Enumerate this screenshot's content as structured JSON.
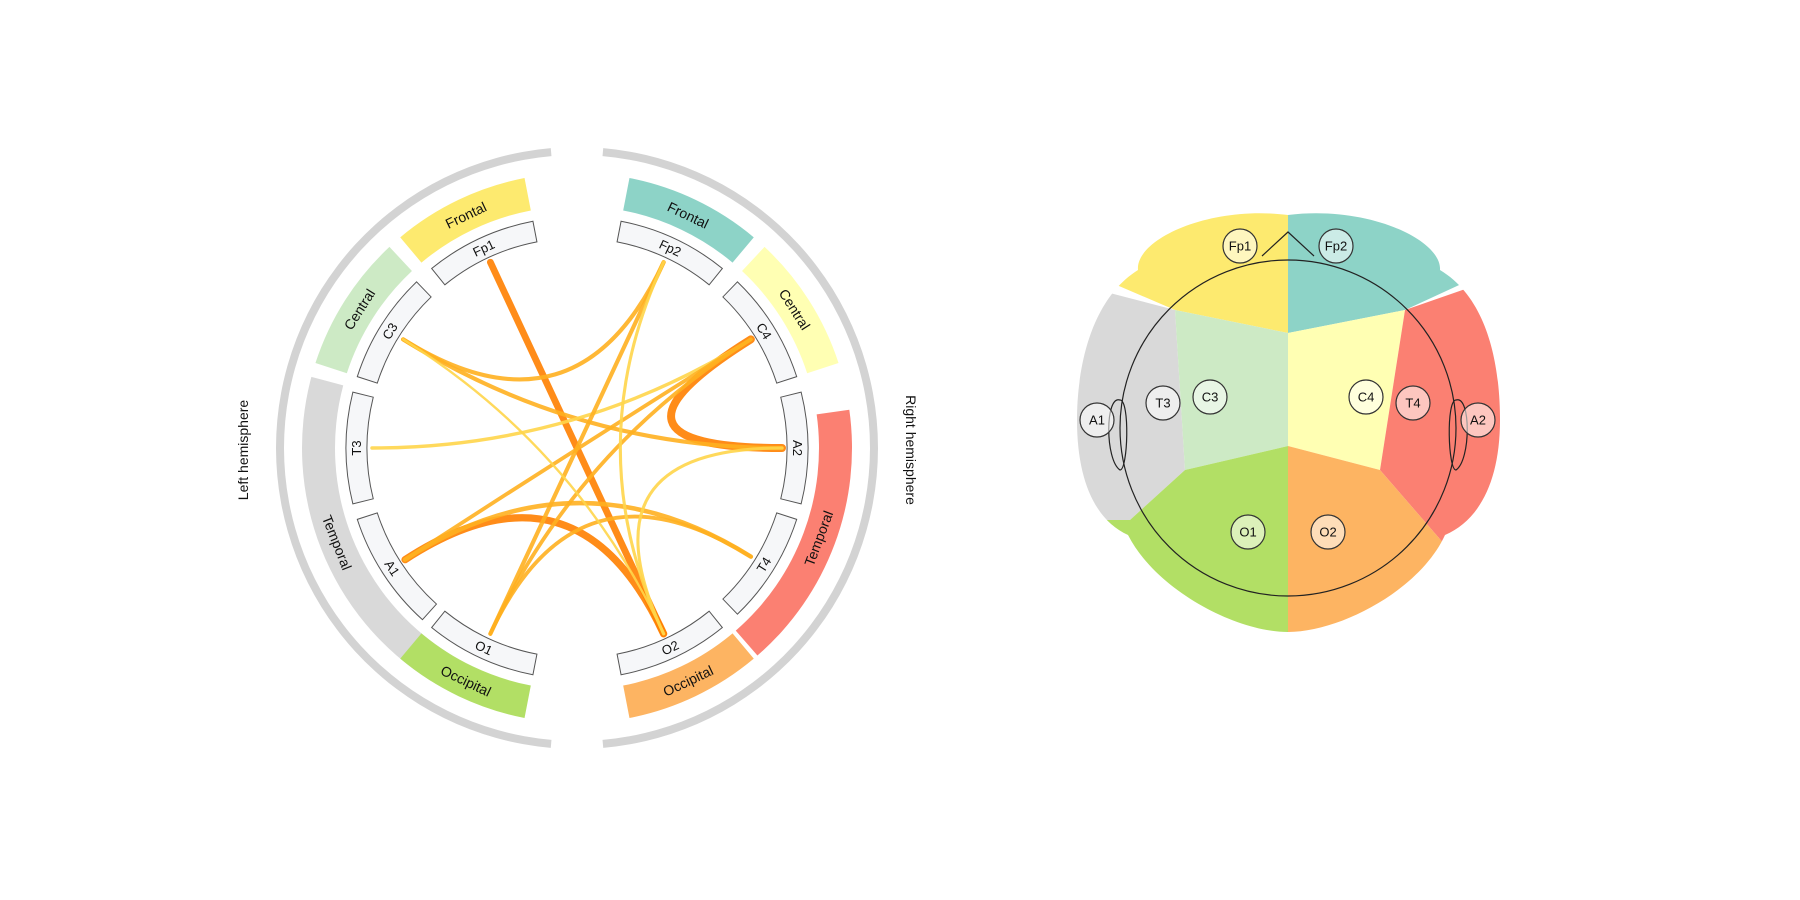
{
  "hemispheres": {
    "left": "Left hemisphere",
    "right": "Right hemisphere",
    "color": "#d3d3d3"
  },
  "regions": [
    {
      "id": "left-frontal",
      "label": "Frontal",
      "color": "#fdea6f"
    },
    {
      "id": "left-central",
      "label": "Central",
      "color": "#cdeac5"
    },
    {
      "id": "left-temporal",
      "label": "Temporal",
      "color": "#d9d9d9"
    },
    {
      "id": "left-occipital",
      "label": "Occipital",
      "color": "#b2df65"
    },
    {
      "id": "right-frontal",
      "label": "Frontal",
      "color": "#8dd3c7"
    },
    {
      "id": "right-central",
      "label": "Central",
      "color": "#ffffb3"
    },
    {
      "id": "right-temporal",
      "label": "Temporal",
      "color": "#fb8072"
    },
    {
      "id": "right-occipital",
      "label": "Occipital",
      "color": "#fdb462"
    }
  ],
  "electrodes": [
    "Fp1",
    "C3",
    "T3",
    "A1",
    "O1",
    "Fp2",
    "C4",
    "A2",
    "T4",
    "O2"
  ],
  "electrode_fill": "#f6f7f9",
  "connections": [
    {
      "from": "Fp1",
      "to": "O2",
      "strength": 0.82
    },
    {
      "from": "A1",
      "to": "O2",
      "strength": 0.9
    },
    {
      "from": "C4",
      "to": "A2",
      "strength": 1.0
    },
    {
      "from": "A1",
      "to": "T4",
      "strength": 0.5
    },
    {
      "from": "C3",
      "to": "Fp2",
      "strength": 0.45
    },
    {
      "from": "C3",
      "to": "A2",
      "strength": 0.45
    },
    {
      "from": "T3",
      "to": "C4",
      "strength": 0.35
    },
    {
      "from": "O1",
      "to": "Fp2",
      "strength": 0.45
    },
    {
      "from": "O1",
      "to": "C4",
      "strength": 0.4
    },
    {
      "from": "O1",
      "to": "T4",
      "strength": 0.4
    },
    {
      "from": "A1",
      "to": "C4",
      "strength": 0.4
    },
    {
      "from": "Fp2",
      "to": "O2",
      "strength": 0.3
    },
    {
      "from": "O2",
      "to": "A2",
      "strength": 0.3
    },
    {
      "from": "C3",
      "to": "O2",
      "strength": 0.2
    }
  ],
  "link_colors": {
    "weak": "#ffd54a",
    "mid": "#ffb020",
    "strong": "#ff8000"
  },
  "head_map": {
    "regions": [
      {
        "id": "left-frontal",
        "color": "#fdea6f"
      },
      {
        "id": "right-frontal",
        "color": "#8dd3c7"
      },
      {
        "id": "left-temporal",
        "color": "#d9d9d9"
      },
      {
        "id": "left-central",
        "color": "#cdeac5"
      },
      {
        "id": "right-central",
        "color": "#ffffb3"
      },
      {
        "id": "right-temporal",
        "color": "#fb8072"
      },
      {
        "id": "left-occipital",
        "color": "#b2df65"
      },
      {
        "id": "right-occipital",
        "color": "#fdb462"
      }
    ],
    "electrodes": [
      "Fp1",
      "Fp2",
      "A1",
      "T3",
      "C3",
      "C4",
      "T4",
      "A2",
      "O1",
      "O2"
    ]
  }
}
